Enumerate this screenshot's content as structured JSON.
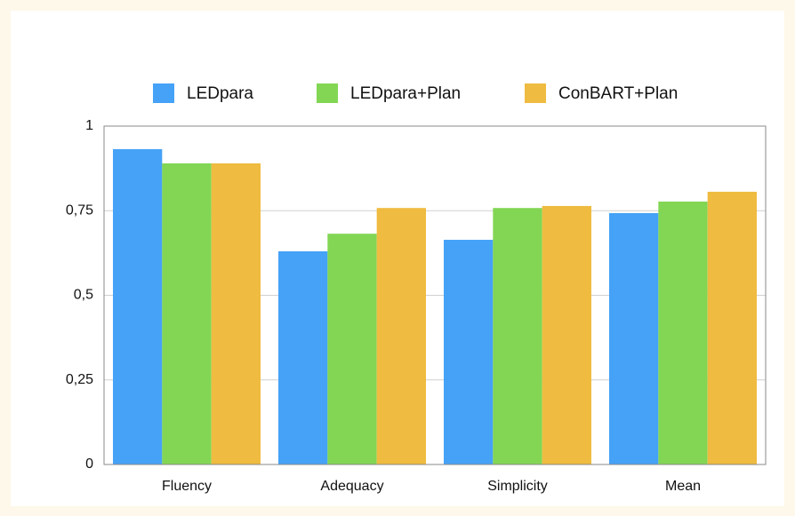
{
  "chart_data": {
    "type": "bar",
    "categories": [
      "Fluency",
      "Adequacy",
      "Simplicity",
      "Mean"
    ],
    "series": [
      {
        "name": "LEDpara",
        "color": "#45a2f7",
        "values": [
          0.932,
          0.63,
          0.664,
          0.743
        ]
      },
      {
        "name": "LEDpara+Plan",
        "color": "#82d654",
        "values": [
          0.89,
          0.682,
          0.758,
          0.777
        ]
      },
      {
        "name": "ConBART+Plan",
        "color": "#efbb40",
        "values": [
          0.89,
          0.758,
          0.764,
          0.806
        ]
      }
    ],
    "ylim": [
      0,
      1
    ],
    "yticks": [
      0,
      {
        "value": 0.25,
        "label": "0,25"
      },
      {
        "value": 0.5,
        "label": "0,5"
      },
      {
        "value": 0.75,
        "label": "0,75"
      },
      1
    ],
    "grid": true,
    "legend": "top"
  }
}
